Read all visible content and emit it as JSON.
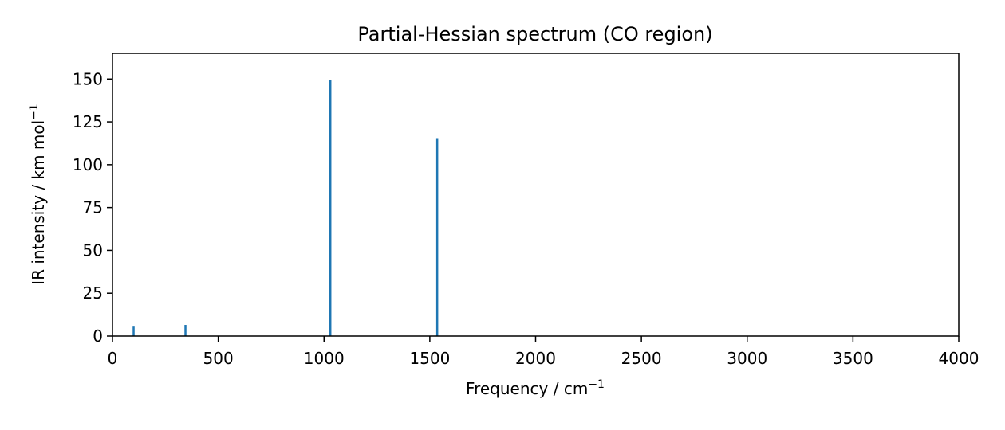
{
  "chart_data": {
    "type": "bar",
    "title": "Partial-Hessian spectrum (CO region)",
    "xlabel": "Frequency / cm",
    "xlabel_sup": "−1",
    "ylabel": "IR intensity / km mol",
    "ylabel_sup": "−1",
    "xlim": [
      0,
      4000
    ],
    "ylim": [
      0,
      165
    ],
    "xticks": [
      0,
      500,
      1000,
      1500,
      2000,
      2500,
      3000,
      3500,
      4000
    ],
    "xtick_labels": [
      "0",
      "500",
      "1000",
      "1500",
      "2000",
      "2500",
      "3000",
      "3500",
      "4000"
    ],
    "yticks": [
      0,
      25,
      50,
      75,
      100,
      125,
      150
    ],
    "ytick_labels": [
      "0",
      "25",
      "50",
      "75",
      "100",
      "125",
      "150"
    ],
    "series": [
      {
        "x": [
          100,
          345,
          1030,
          1535
        ],
        "values": [
          5.5,
          6.5,
          149.5,
          115.5
        ],
        "color": "#1f77b4"
      }
    ],
    "grid": false,
    "legend": false
  }
}
